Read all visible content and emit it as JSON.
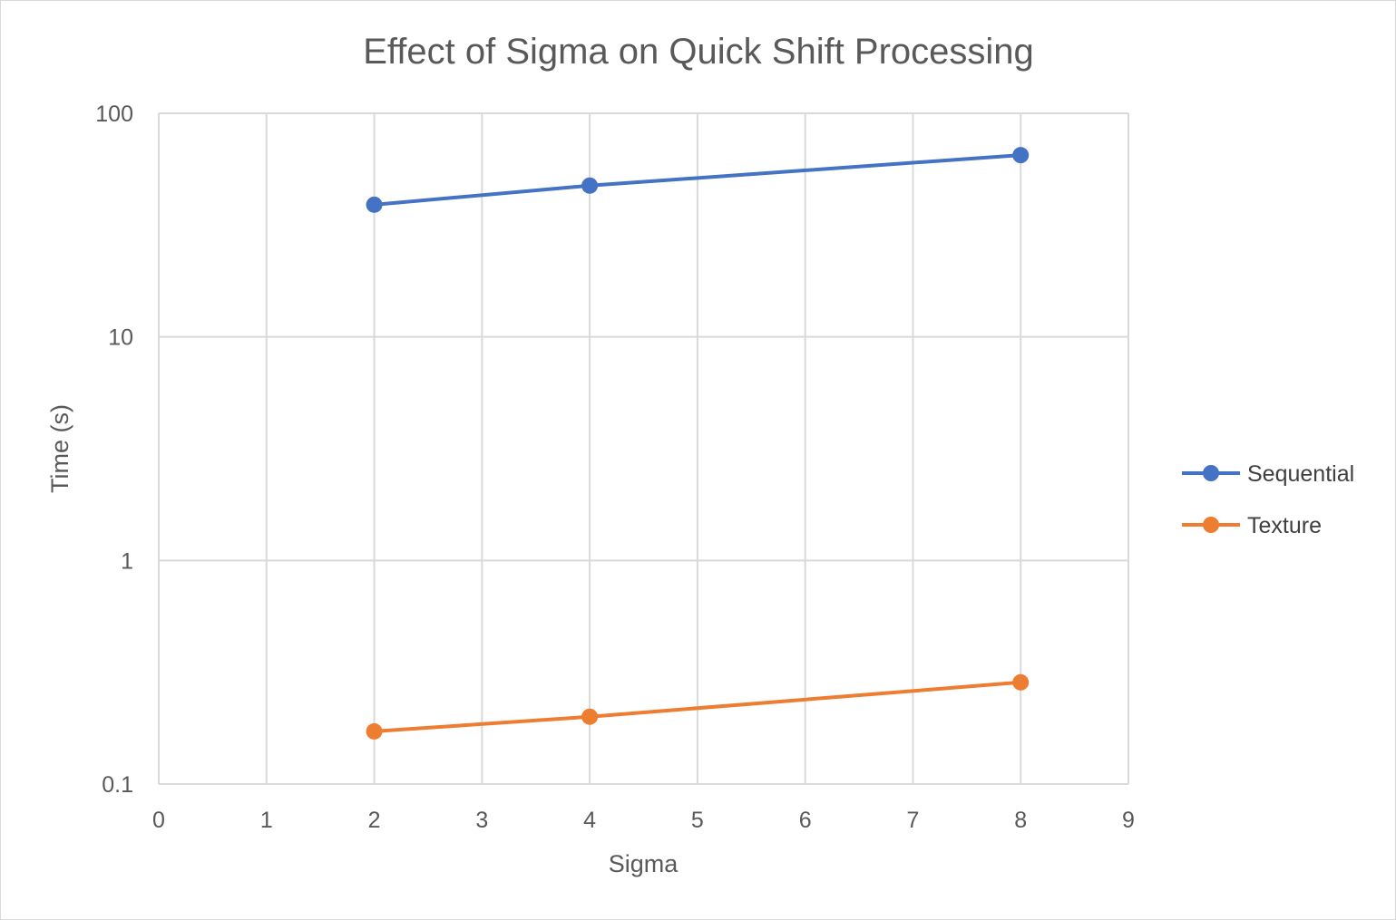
{
  "chart_data": {
    "type": "line",
    "title": "Effect of Sigma on Quick Shift Processing",
    "xlabel": "Sigma",
    "ylabel": "Time (s)",
    "xlim": [
      0,
      9
    ],
    "ylim": [
      0.1,
      100
    ],
    "y_scale": "log",
    "x_ticks": [
      "0",
      "1",
      "2",
      "3",
      "4",
      "5",
      "6",
      "7",
      "8",
      "9"
    ],
    "y_ticks": [
      "0.1",
      "1",
      "10",
      "100"
    ],
    "grid": true,
    "legend_position": "right",
    "series": [
      {
        "name": "Sequential",
        "color": "#4472C4",
        "x": [
          2,
          4,
          8
        ],
        "y": [
          39,
          47.5,
          65
        ]
      },
      {
        "name": "Texture",
        "color": "#ED7D31",
        "x": [
          2,
          4,
          8
        ],
        "y": [
          0.172,
          0.2,
          0.285
        ]
      }
    ]
  }
}
